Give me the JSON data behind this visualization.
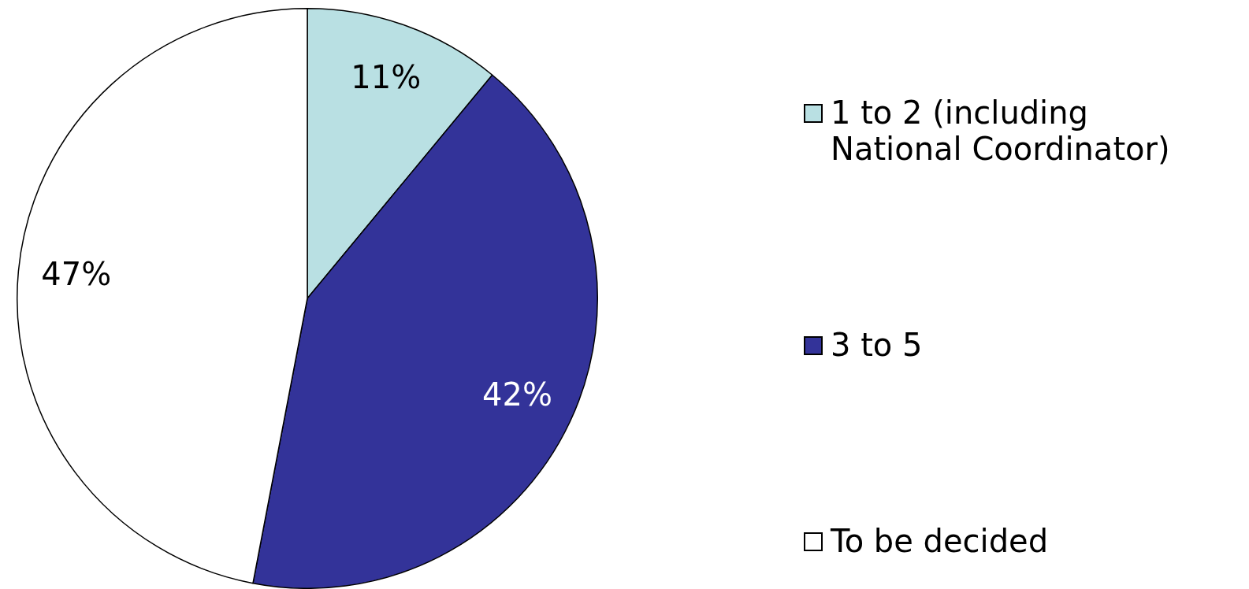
{
  "chart_data": {
    "type": "pie",
    "categories": [
      "1 to 2 (including National Coordinator)",
      "3 to 5",
      "To be decided"
    ],
    "values": [
      11,
      42,
      47
    ],
    "colors": [
      "#b9e0e3",
      "#333399",
      "#ffffff"
    ],
    "value_labels": [
      "11%",
      "42%",
      "47%"
    ],
    "legend": "right"
  }
}
